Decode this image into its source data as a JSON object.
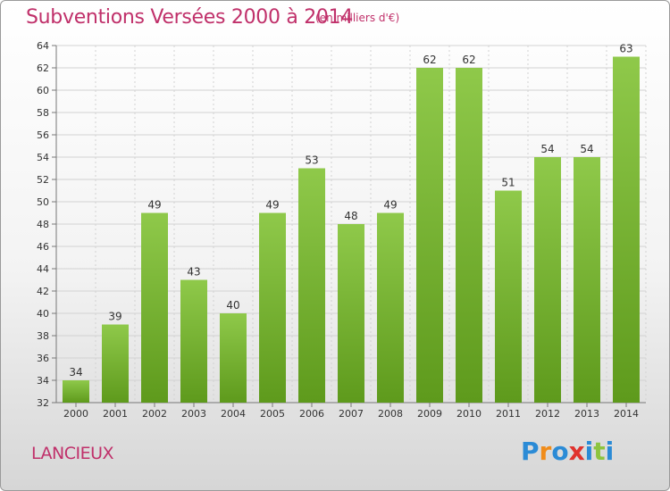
{
  "header": {
    "title": "Subventions Versées 2000 à 2014",
    "subtitle": "(en milliers d'€)"
  },
  "footer": {
    "commune": "LANCIEUX",
    "logo_text": "Proxiti"
  },
  "colors": {
    "bar_top": "#8fc94a",
    "bar_bottom": "#5e9a1c",
    "accent": "#c0306a",
    "logo_letters": [
      "#2b8bd6",
      "#f08c1a",
      "#2b8bd6",
      "#e0322d",
      "#2b8bd6",
      "#8dc43f",
      "#2b8bd6"
    ]
  },
  "chart_data": {
    "type": "bar",
    "categories": [
      "2000",
      "2001",
      "2002",
      "2003",
      "2004",
      "2005",
      "2006",
      "2007",
      "2008",
      "2009",
      "2010",
      "2011",
      "2012",
      "2013",
      "2014"
    ],
    "values": [
      34,
      39,
      49,
      43,
      40,
      49,
      53,
      48,
      49,
      62,
      62,
      51,
      54,
      54,
      63
    ],
    "ylim": [
      32,
      64
    ],
    "yticks": [
      32,
      34,
      36,
      38,
      40,
      42,
      44,
      46,
      48,
      50,
      52,
      54,
      56,
      58,
      60,
      62,
      64
    ],
    "grid": true,
    "xlabel": "",
    "ylabel": ""
  }
}
